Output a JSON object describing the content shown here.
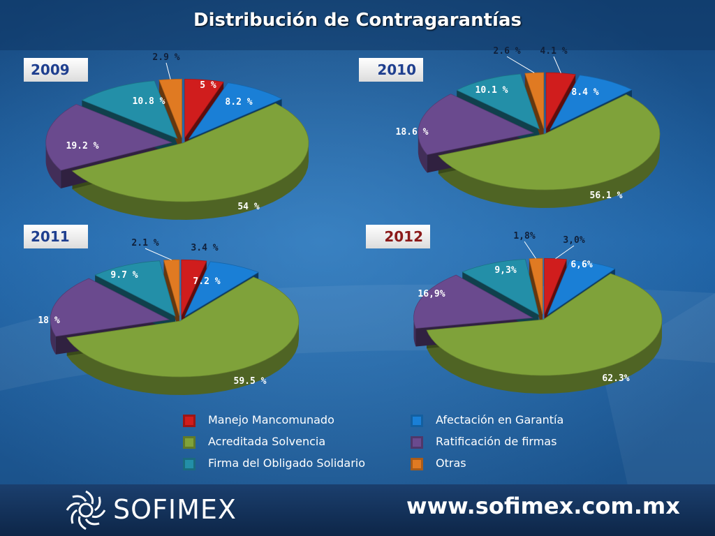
{
  "title": "Distribución de Contragarantías",
  "legend": [
    {
      "label": "Manejo Mancomunado",
      "color": "#d01d1d"
    },
    {
      "label": "Afectación en Garantía",
      "color": "#1a7fd6"
    },
    {
      "label": "Acreditada Solvencia",
      "color": "#7fa23a"
    },
    {
      "label": "Ratificación de firmas",
      "color": "#6a4a8e"
    },
    {
      "label": "Firma del Obligado Solidario",
      "color": "#238fa8"
    },
    {
      "label": "Otras",
      "color": "#e07a22"
    }
  ],
  "chart_data": [
    {
      "type": "pie",
      "title": "2009",
      "labels": [
        "Manejo Mancomunado",
        "Afectación en Garantía",
        "Acreditada Solvencia",
        "Ratificación de firmas",
        "Firma del Obligado Solidario",
        "Otras"
      ],
      "values": [
        5,
        8.2,
        54,
        19.2,
        10.8,
        2.9
      ],
      "value_labels": [
        "5 %",
        "8.2 %",
        "54 %",
        "19.2 %",
        "10.8 %",
        "2.9 %"
      ]
    },
    {
      "type": "pie",
      "title": "2010",
      "labels": [
        "Manejo Mancomunado",
        "Afectación en Garantía",
        "Acreditada Solvencia",
        "Ratificación de firmas",
        "Firma del Obligado Solidario",
        "Otras"
      ],
      "values": [
        4.1,
        8.4,
        56.1,
        18.6,
        10.1,
        2.6
      ],
      "value_labels": [
        "4.1 %",
        "8.4 %",
        "56.1 %",
        "18.6 %",
        "10.1 %",
        "2.6 %"
      ]
    },
    {
      "type": "pie",
      "title": "2011",
      "labels": [
        "Manejo Mancomunado",
        "Afectación en Garantía",
        "Acreditada Solvencia",
        "Ratificación de firmas",
        "Firma del Obligado Solidario",
        "Otras"
      ],
      "values": [
        3.4,
        7.2,
        59.5,
        18,
        9.7,
        2.1
      ],
      "value_labels": [
        "3.4 %",
        "7.2 %",
        "59.5 %",
        "18 %",
        "9.7 %",
        "2.1 %"
      ]
    },
    {
      "type": "pie",
      "title": "2012",
      "labels": [
        "Manejo Mancomunado",
        "Afectación en Garantía",
        "Acreditada Solvencia",
        "Ratificación de firmas",
        "Firma del Obligado Solidario",
        "Otras"
      ],
      "values": [
        3.0,
        6.6,
        62.3,
        16.9,
        9.3,
        1.8
      ],
      "value_labels": [
        "3,0%",
        "6,6%",
        "62.3%",
        "16,9%",
        "9,3%",
        "1,8%"
      ]
    }
  ],
  "footer": {
    "logo_text": "SOFIMEX",
    "url": "www.sofimex.com.mx"
  }
}
